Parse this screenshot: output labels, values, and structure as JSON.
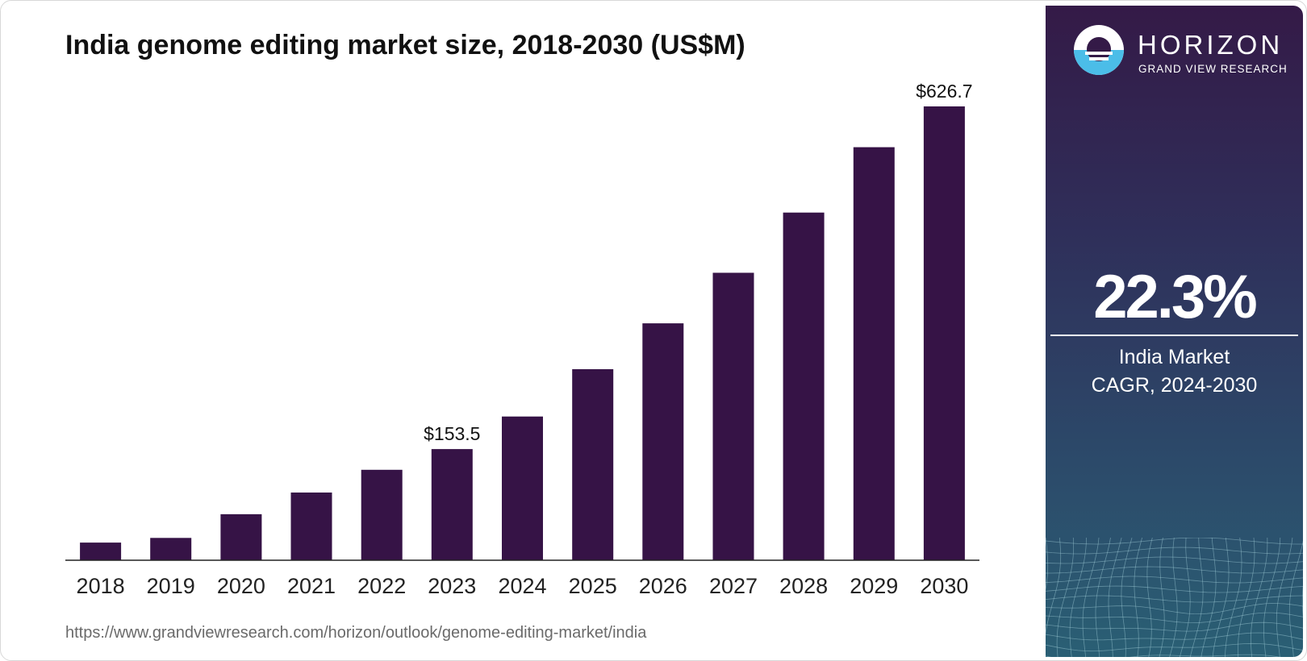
{
  "title": "India genome editing market size, 2018-2030 (US$M)",
  "source": "https://www.grandviewresearch.com/horizon/outlook/genome-editing-market/india",
  "colors": {
    "bar": "#361346",
    "axis": "#222222",
    "panel_top": "#341a47",
    "panel_bottom": "#2a5f74",
    "logo_accent": "#4bbde8"
  },
  "panel": {
    "logo_icon": "horizon-sun-icon",
    "logo_name": "HORIZON",
    "logo_sub": "GRAND VIEW RESEARCH",
    "cagr_value": "22.3%",
    "cagr_label_1": "India Market",
    "cagr_label_2": "CAGR, 2024-2030"
  },
  "chart_data": {
    "type": "bar",
    "title": "India genome editing market size, 2018-2030 (US$M)",
    "xlabel": "",
    "ylabel": "",
    "categories": [
      "2018",
      "2019",
      "2020",
      "2021",
      "2022",
      "2023",
      "2024",
      "2025",
      "2026",
      "2027",
      "2028",
      "2029",
      "2030"
    ],
    "values": [
      24.4,
      30.8,
      63.6,
      93.5,
      124.9,
      153.5,
      198.5,
      263.8,
      327.2,
      396.9,
      480.1,
      570.4,
      626.7
    ],
    "data_labels": [
      {
        "category": "2023",
        "text": "$153.5"
      },
      {
        "category": "2030",
        "text": "$626.7"
      }
    ],
    "ylim": [
      0,
      626.7
    ],
    "grid": false,
    "legend": "none"
  }
}
